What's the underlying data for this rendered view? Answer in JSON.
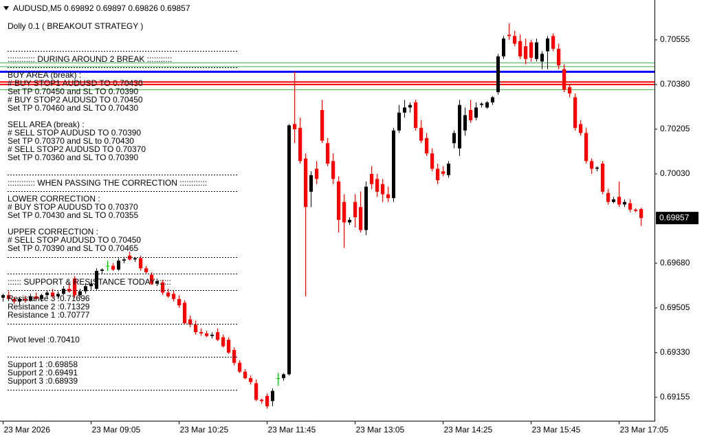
{
  "chart_data": {
    "type": "candlestick",
    "title": "AUDUSD,M5  0.69892 0.69897 0.69826 0.69857",
    "panel": [
      "Dolly 0.1 ( BREAKOUT STRATEGY )",
      ":::::::::::: DURING AROUND 2 BREAK :::::::::::",
      "BUY AREA (break) :",
      "# BUY STOP1  AUDUSD TO 0.70430",
      "Set TP 0.70450 and SL TO 0.70390",
      "# BUY STOP2  AUDUSD TO 0.70450",
      "Set TP 0.70460 and SL TO 0.70430",
      "SELL AREA (break) :",
      "# SELL STOP  AUDUSD TO 0.70390",
      "Set TP 0.70370 and SL to 0.70430",
      "# SELL STOP2  AUDUSD TO 0.70370",
      "Set TP 0.70360 and SL TO 0.70390",
      ":::::::::::: WHEN PASSING THE CORRECTION ::::::::::::",
      "LOWER CORRECTION :",
      "# BUY STOP  AUDUSD TO 0.70370",
      "Set TP 0.70430 and SL TO 0.70355",
      "UPPER CORRECTION :",
      "# SELL STOP  AUDUSD TO 0.70450",
      "Set TP 0.70390 and SL TO 0.70465",
      ":::::: SUPPORT & RESISTANCE TODAY ::::::",
      "Resistance 3 :0.71696",
      "Resistance 2 :0.71329",
      "Resistance 1 :0.70777",
      "Pivot level :0.70410",
      "Support 1 :0.69858",
      "Support 2 :0.69491",
      "Support 3 :0.68939"
    ],
    "categories": [
      "23 Mar 2026",
      null,
      null,
      null,
      null,
      null,
      null,
      null,
      null,
      null,
      null,
      null,
      null,
      null,
      null,
      null,
      "23 Mar 09:05",
      null,
      null,
      null,
      null,
      null,
      null,
      null,
      null,
      null,
      null,
      null,
      null,
      null,
      null,
      null,
      "23 Mar 10:25",
      null,
      null,
      null,
      null,
      null,
      null,
      null,
      null,
      null,
      null,
      null,
      null,
      null,
      null,
      null,
      "23 Mar 11:45",
      null,
      null,
      null,
      null,
      null,
      null,
      null,
      null,
      null,
      null,
      null,
      null,
      null,
      null,
      null,
      "23 Mar 13:05",
      null,
      null,
      null,
      null,
      null,
      null,
      null,
      null,
      null,
      null,
      null,
      null,
      null,
      null,
      null,
      "23 Mar 14:25",
      null,
      null,
      null,
      null,
      null,
      null,
      null,
      null,
      null,
      null,
      null,
      null,
      null,
      null,
      null,
      "23 Mar 15:45",
      null,
      null,
      null,
      null,
      null,
      null,
      null,
      null,
      null,
      null,
      null,
      null,
      null,
      null,
      null,
      "23 Mar 17:05",
      null,
      null,
      null,
      null
    ],
    "candles": [
      [
        0.69545,
        0.6956,
        0.6953,
        0.69555
      ],
      [
        0.69555,
        0.6957,
        0.69535,
        0.6954
      ],
      [
        0.6954,
        0.69548,
        0.6952,
        0.6953
      ],
      [
        0.6953,
        0.69545,
        0.69515,
        0.6954
      ],
      [
        0.6954,
        0.69552,
        0.69525,
        0.69535
      ],
      [
        0.69535,
        0.6956,
        0.6953,
        0.6955
      ],
      [
        0.6955,
        0.69565,
        0.69535,
        0.6954
      ],
      [
        0.6954,
        0.6956,
        0.6953,
        0.69555
      ],
      [
        0.69555,
        0.69575,
        0.69545,
        0.69565
      ],
      [
        0.69565,
        0.6958,
        0.69545,
        0.6955
      ],
      [
        0.6955,
        0.6957,
        0.6954,
        0.6956
      ],
      [
        0.6956,
        0.6959,
        0.69555,
        0.6958
      ],
      [
        0.6958,
        0.696,
        0.69565,
        0.6957
      ],
      [
        0.6962,
        0.6963,
        0.69545,
        0.69555
      ],
      [
        0.69555,
        0.6958,
        0.69545,
        0.6957
      ],
      [
        0.6957,
        0.696,
        0.6956,
        0.6959
      ],
      [
        0.6959,
        0.6961,
        0.69575,
        0.696
      ],
      [
        0.6958,
        0.6966,
        0.69575,
        0.6965
      ],
      [
        0.6965,
        0.6966,
        0.6964,
        0.69655
      ],
      [
        0.6967,
        0.6969,
        0.6965,
        0.6967
      ],
      [
        0.6967,
        0.6968,
        0.6965,
        0.69655
      ],
      [
        0.69655,
        0.697,
        0.6965,
        0.6969
      ],
      [
        0.6969,
        0.69705,
        0.6968,
        0.69695
      ],
      [
        0.6971,
        0.69725,
        0.6969,
        0.69695
      ],
      [
        0.69695,
        0.69705,
        0.69685,
        0.697
      ],
      [
        0.697,
        0.6971,
        0.6965,
        0.6966
      ],
      [
        0.6966,
        0.6967,
        0.6964,
        0.69645
      ],
      [
        0.69635,
        0.69645,
        0.69595,
        0.696
      ],
      [
        0.696,
        0.6962,
        0.6959,
        0.6961
      ],
      [
        0.69605,
        0.69615,
        0.69555,
        0.69565
      ],
      [
        0.69565,
        0.6958,
        0.69545,
        0.6955
      ],
      [
        0.6956,
        0.69575,
        0.6953,
        0.6954
      ],
      [
        0.6954,
        0.69555,
        0.69505,
        0.69515
      ],
      [
        0.69525,
        0.69535,
        0.6944,
        0.69445
      ],
      [
        0.6946,
        0.69475,
        0.6943,
        0.6944
      ],
      [
        0.6944,
        0.69455,
        0.694,
        0.6941
      ],
      [
        0.6941,
        0.69425,
        0.69395,
        0.69405
      ],
      [
        0.69405,
        0.69415,
        0.6939,
        0.69395
      ],
      [
        0.69395,
        0.6941,
        0.69385,
        0.694
      ],
      [
        0.6941,
        0.69425,
        0.69375,
        0.6938
      ],
      [
        0.6939,
        0.694,
        0.6935,
        0.69355
      ],
      [
        0.6938,
        0.6939,
        0.69325,
        0.6933
      ],
      [
        0.6934,
        0.6935,
        0.6928,
        0.6929
      ],
      [
        0.6929,
        0.693,
        0.6925,
        0.69255
      ],
      [
        0.69255,
        0.69265,
        0.69225,
        0.6923
      ],
      [
        0.6923,
        0.6924,
        0.69205,
        0.69215
      ],
      [
        0.6921,
        0.69225,
        0.6914,
        0.69145
      ],
      [
        0.69145,
        0.6915,
        0.6913,
        0.6914
      ],
      [
        0.6916,
        0.6917,
        0.6911,
        0.6912
      ],
      [
        0.6914,
        0.6919,
        0.6912,
        0.6918
      ],
      [
        0.6923,
        0.6925,
        0.692,
        0.6923
      ],
      [
        0.6923,
        0.6925,
        0.6922,
        0.69245
      ],
      [
        0.69245,
        0.70225,
        0.6924,
        0.7022
      ],
      [
        0.70225,
        0.7043,
        0.7015,
        0.70205
      ],
      [
        0.7021,
        0.7025,
        0.7007,
        0.7008
      ],
      [
        0.7009,
        0.7011,
        0.6955,
        0.699
      ],
      [
        0.6996,
        0.7004,
        0.699,
        0.70025
      ],
      [
        0.7005,
        0.7008,
        0.6999,
        0.7001
      ],
      [
        0.7028,
        0.7032,
        0.7015,
        0.7016
      ],
      [
        0.7015,
        0.7017,
        0.7006,
        0.7007
      ],
      [
        0.7008,
        0.7011,
        0.6999,
        0.7001
      ],
      [
        0.7,
        0.7002,
        0.698,
        0.6985
      ],
      [
        0.6992,
        0.6995,
        0.6974,
        0.6984
      ],
      [
        0.6984,
        0.6986,
        0.6983,
        0.6985
      ],
      [
        0.6992,
        0.6995,
        0.6982,
        0.6986
      ],
      [
        0.699,
        0.6996,
        0.698,
        0.6981
      ],
      [
        0.6981,
        0.7,
        0.6979,
        0.6998
      ],
      [
        0.7003,
        0.7006,
        0.6997,
        0.6999
      ],
      [
        0.7001,
        0.7003,
        0.6994,
        0.6996
      ],
      [
        0.6999,
        0.7001,
        0.6992,
        0.6995
      ],
      [
        0.6995,
        0.6998,
        0.6992,
        0.69935
      ],
      [
        0.69935,
        0.7021,
        0.6992,
        0.702
      ],
      [
        0.702,
        0.703,
        0.7019,
        0.7027
      ],
      [
        0.7027,
        0.7032,
        0.7025,
        0.7029
      ],
      [
        0.7029,
        0.7031,
        0.7027,
        0.703
      ],
      [
        0.7031,
        0.7032,
        0.702,
        0.7021
      ],
      [
        0.7021,
        0.7024,
        0.7015,
        0.7016
      ],
      [
        0.7017,
        0.7019,
        0.701,
        0.7011
      ],
      [
        0.7011,
        0.7013,
        0.7004,
        0.7005
      ],
      [
        0.7005,
        0.7007,
        0.6999,
        0.70005
      ],
      [
        0.7004,
        0.7006,
        0.7002,
        0.7003
      ],
      [
        0.70025,
        0.7008,
        0.70015,
        0.7007
      ],
      [
        0.7015,
        0.702,
        0.7013,
        0.7019
      ],
      [
        0.7013,
        0.7032,
        0.701,
        0.703
      ],
      [
        0.702,
        0.7029,
        0.7018,
        0.7026
      ],
      [
        0.7028,
        0.7032,
        0.7023,
        0.7024
      ],
      [
        0.7025,
        0.7031,
        0.7024,
        0.7029
      ],
      [
        0.703,
        0.7031,
        0.7029,
        0.70305
      ],
      [
        0.7029,
        0.70315,
        0.70285,
        0.7031
      ],
      [
        0.7031,
        0.70335,
        0.703,
        0.7033
      ],
      [
        0.7035,
        0.705,
        0.7034,
        0.7049
      ],
      [
        0.7049,
        0.7057,
        0.7048,
        0.7056
      ],
      [
        0.70575,
        0.7062,
        0.70555,
        0.7057
      ],
      [
        0.7057,
        0.7059,
        0.7053,
        0.7054
      ],
      [
        0.7055,
        0.70575,
        0.7048,
        0.7049
      ],
      [
        0.7053,
        0.7056,
        0.7046,
        0.7048
      ],
      [
        0.70545,
        0.70555,
        0.7047,
        0.70485
      ],
      [
        0.7048,
        0.7056,
        0.7047,
        0.70545
      ],
      [
        0.7047,
        0.7051,
        0.7044,
        0.705
      ],
      [
        0.7051,
        0.7057,
        0.7044,
        0.7056
      ],
      [
        0.7057,
        0.7058,
        0.7051,
        0.7052
      ],
      [
        0.7052,
        0.7054,
        0.7044,
        0.70455
      ],
      [
        0.7044,
        0.7046,
        0.7035,
        0.7036
      ],
      [
        0.7037,
        0.7038,
        0.7033,
        0.70345
      ],
      [
        0.7033,
        0.70345,
        0.702,
        0.7021
      ],
      [
        0.70225,
        0.7024,
        0.7018,
        0.7019
      ],
      [
        0.7019,
        0.7021,
        0.7007,
        0.7008
      ],
      [
        0.7008,
        0.7009,
        0.7003,
        0.7005
      ],
      [
        0.7005,
        0.7006,
        0.7004,
        0.70055
      ],
      [
        0.7007,
        0.7008,
        0.6995,
        0.6996
      ],
      [
        0.69955,
        0.6997,
        0.6991,
        0.6992
      ],
      [
        0.6992,
        0.6994,
        0.69915,
        0.6993
      ],
      [
        0.6994,
        0.7,
        0.699,
        0.6991
      ],
      [
        0.6991,
        0.6993,
        0.699,
        0.6992
      ],
      [
        0.69915,
        0.6993,
        0.6988,
        0.6989
      ],
      [
        0.6989,
        0.69895,
        0.6988,
        0.69885
      ],
      [
        0.69892,
        0.69897,
        0.69826,
        0.69857
      ]
    ],
    "up_color": "#000000",
    "down_color": "#ff0000",
    "doji_color": "#00c000",
    "levels": [
      {
        "value": 0.70465,
        "color": "#3cb043"
      },
      {
        "value": 0.7045,
        "color": "#3cb043"
      },
      {
        "value": 0.7043,
        "color": "#0000ff"
      },
      {
        "value": 0.7039,
        "color": "#ff0000"
      },
      {
        "value": 0.7038,
        "color": "#ff0000"
      },
      {
        "value": 0.7036,
        "color": "#3cb043"
      }
    ],
    "ylim": [
      0.69063,
      0.70711
    ],
    "yticks": [
      0.70555,
      {
        "value": 0.7038,
        "label": "0.70380"
      },
      0.70205,
      {
        "value": 0.7003,
        "label": "0.70030"
      },
      {
        "value": 0.6968,
        "label": "0.69680"
      },
      0.69505,
      {
        "value": 0.6933,
        "label": "0.69330"
      },
      0.69155
    ],
    "last_price": {
      "value": 0.69857,
      "label": "0.69857"
    }
  }
}
